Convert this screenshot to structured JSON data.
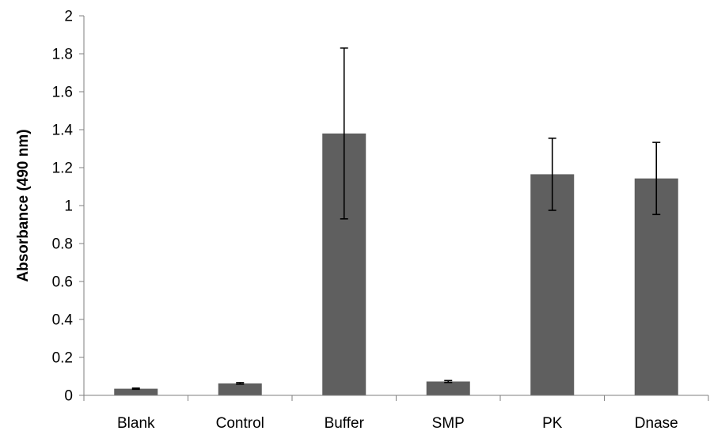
{
  "chart_data": {
    "type": "bar",
    "title": "",
    "xlabel": "",
    "ylabel": "Absorbance (490 nm)",
    "ylim": [
      0,
      2
    ],
    "yticks": [
      "0",
      "0.2",
      "0.4",
      "0.6",
      "0.8",
      "1",
      "1.2",
      "1.4",
      "1.6",
      "1.8",
      "2"
    ],
    "categories": [
      "Blank",
      "Control",
      "Buffer",
      "SMP",
      "PK",
      "Dnase"
    ],
    "values": [
      0.035,
      0.063,
      1.38,
      0.073,
      1.165,
      1.143
    ],
    "error_bars": [
      0.003,
      0.004,
      0.45,
      0.005,
      0.19,
      0.19
    ],
    "grid": false,
    "legend": "none",
    "colors": {
      "bar": "#5f5f5f",
      "axis": "#7f7f7f",
      "error_bar": "#000000",
      "text": "#000000"
    }
  }
}
